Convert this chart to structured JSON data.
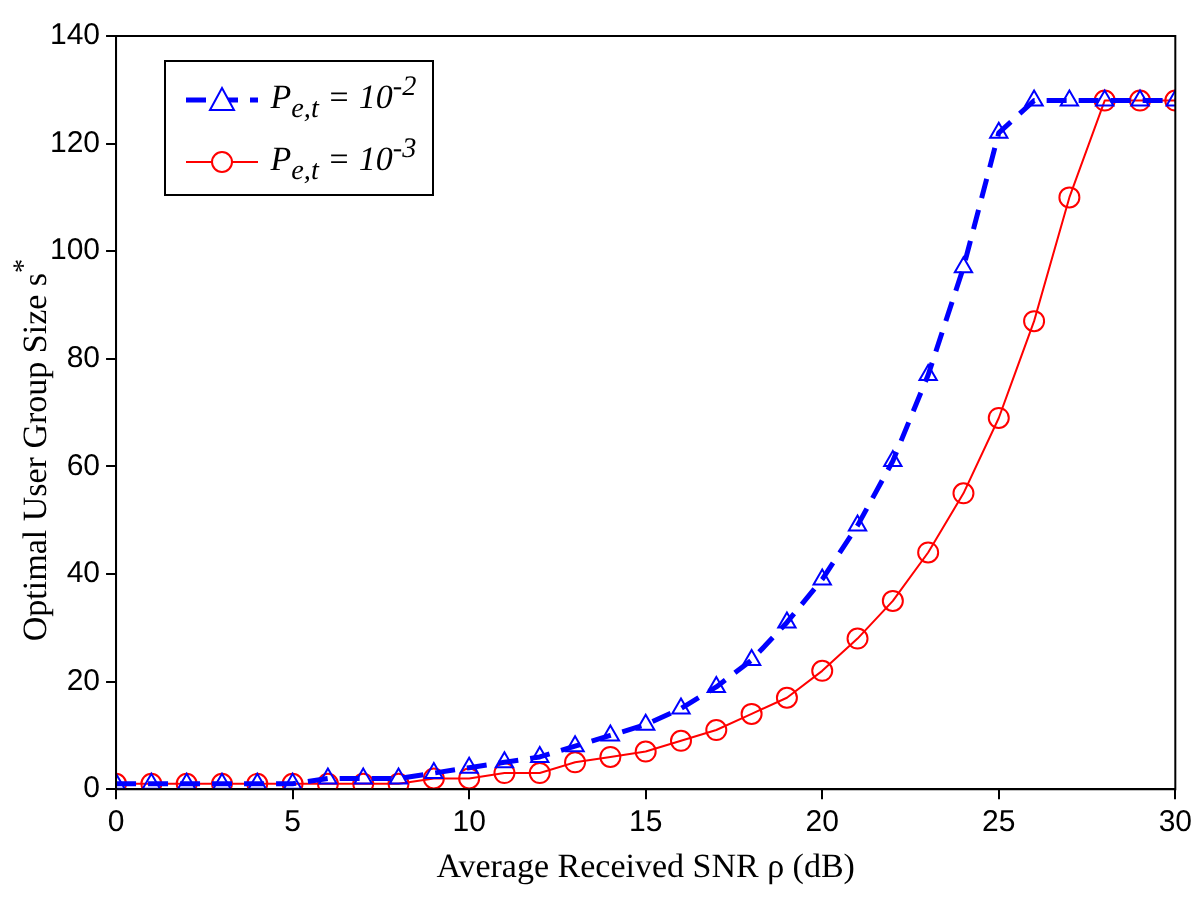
{
  "chart_data": {
    "type": "line",
    "xlabel": "Average Received SNR ρ (dB)",
    "ylabel": "Optimal User Group Size s$^{*}$",
    "x": [
      0,
      1,
      2,
      3,
      4,
      5,
      6,
      7,
      8,
      9,
      10,
      11,
      12,
      13,
      14,
      15,
      16,
      17,
      18,
      19,
      20,
      21,
      22,
      23,
      24,
      25,
      26,
      27,
      28,
      29,
      30
    ],
    "series": [
      {
        "name": "P$_{e,t}$ = 10$^{-2}$",
        "color": "#0000ff",
        "marker": "triangle",
        "line_style": "dashed",
        "values": [
          1,
          1,
          1,
          1,
          1,
          1,
          2,
          2,
          2,
          3,
          4,
          5,
          6,
          8,
          10,
          12,
          15,
          19,
          24,
          31,
          39,
          49,
          61,
          77,
          97,
          122,
          128,
          128,
          128,
          128,
          128
        ]
      },
      {
        "name": "P$_{e,t}$ = 10$^{-3}$",
        "color": "#ff0000",
        "marker": "circle",
        "line_style": "solid",
        "values": [
          1,
          1,
          1,
          1,
          1,
          1,
          1,
          1,
          1,
          2,
          2,
          3,
          3,
          5,
          6,
          7,
          9,
          11,
          14,
          17,
          22,
          28,
          35,
          44,
          55,
          69,
          87,
          110,
          128,
          128,
          128
        ]
      }
    ],
    "xlim": [
      0,
      30
    ],
    "xticks": [
      0,
      5,
      10,
      15,
      20,
      25,
      30
    ],
    "ylim": [
      0,
      140
    ],
    "yticks": [
      0,
      20,
      40,
      60,
      80,
      100,
      120,
      140
    ],
    "grid": false,
    "legend": "top left"
  }
}
